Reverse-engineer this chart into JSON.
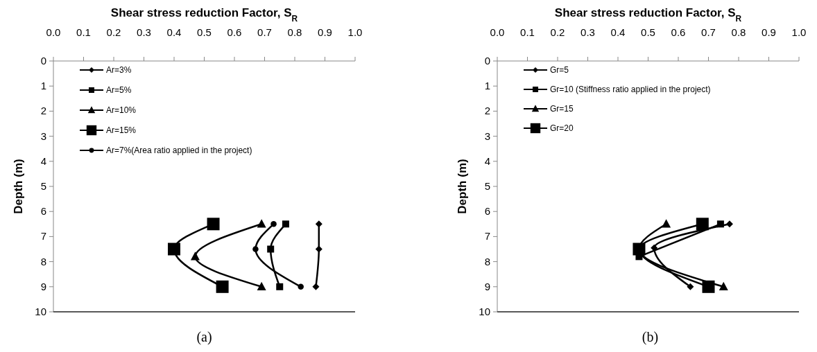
{
  "chart_data": [
    {
      "type": "line",
      "xlabel": "Shear stress reduction Factor, S$_{R}$",
      "ylabel": "Depth (m)",
      "annotations": [
        "(a)"
      ],
      "legend": "top left",
      "grid": false,
      "xlim": [
        0,
        1
      ],
      "xticks": [
        {
          "value": 0,
          "label": "0.0"
        },
        {
          "value": 0.1,
          "label": "0.1"
        },
        {
          "value": 0.2,
          "label": "0.2"
        },
        {
          "value": 0.3,
          "label": "0.3"
        },
        {
          "value": 0.4,
          "label": "0.4"
        },
        {
          "value": 0.5,
          "label": "0.5"
        },
        {
          "value": 0.6,
          "label": "0.6"
        },
        {
          "value": 0.7,
          "label": "0.7"
        },
        {
          "value": 0.8,
          "label": "0.8"
        },
        {
          "value": 0.9,
          "label": "0.9"
        },
        {
          "value": 1,
          "label": "1.0"
        }
      ],
      "ylim": [
        10,
        0
      ],
      "yticks": [
        0,
        1,
        2,
        3,
        4,
        5,
        6,
        7,
        8,
        9,
        10
      ],
      "series": [
        {
          "name": "Ar=3%",
          "color": "#000000",
          "marker": "diamond",
          "x": [
            0.88,
            0.88,
            0.87
          ],
          "values": [
            6.5,
            7.5,
            9
          ]
        },
        {
          "name": "Ar=5%",
          "color": "#000000",
          "marker": "square",
          "x": [
            0.77,
            0.72,
            0.75
          ],
          "values": [
            6.5,
            7.5,
            9
          ]
        },
        {
          "name": "Ar=10%",
          "color": "#000000",
          "marker": "triangle",
          "x": [
            0.69,
            0.47,
            0.69
          ],
          "values": [
            6.5,
            7.8,
            9
          ]
        },
        {
          "name": "Ar=15%",
          "color": "#000000",
          "marker": "square",
          "x": [
            0.53,
            0.4,
            0.56
          ],
          "values": [
            6.5,
            7.5,
            9
          ]
        },
        {
          "name": "Ar=7%(Area ratio applied in the project)",
          "color": "#000000",
          "marker": "circle",
          "x": [
            0.73,
            0.67,
            0.82
          ],
          "values": [
            6.5,
            7.5,
            9
          ]
        }
      ]
    },
    {
      "type": "line",
      "xlabel": "Shear stress reduction Factor, S$_{R}$",
      "ylabel": "Depth (m)",
      "annotations": [
        "(b)"
      ],
      "legend": "top left",
      "grid": false,
      "xlim": [
        0,
        1
      ],
      "xticks": [
        {
          "value": 0,
          "label": "0.0"
        },
        {
          "value": 0.1,
          "label": "0.1"
        },
        {
          "value": 0.2,
          "label": "0.2"
        },
        {
          "value": 0.3,
          "label": "0.3"
        },
        {
          "value": 0.4,
          "label": "0.4"
        },
        {
          "value": 0.5,
          "label": "0.5"
        },
        {
          "value": 0.6,
          "label": "0.6"
        },
        {
          "value": 0.7,
          "label": "0.7"
        },
        {
          "value": 0.8,
          "label": "0.8"
        },
        {
          "value": 0.9,
          "label": "0.9"
        },
        {
          "value": 1,
          "label": "1.0"
        }
      ],
      "ylim": [
        10,
        0
      ],
      "yticks": [
        0,
        1,
        2,
        3,
        4,
        5,
        6,
        7,
        8,
        9,
        10
      ],
      "series": [
        {
          "name": "Gr=5",
          "color": "#000000",
          "marker": "diamond",
          "x": [
            0.77,
            0.52,
            0.64
          ],
          "values": [
            6.5,
            7.45,
            9
          ]
        },
        {
          "name": "Gr=10 (Stiffness ratio applied in the project)",
          "color": "#000000",
          "marker": "square",
          "x": [
            0.74,
            0.47,
            null
          ],
          "values": [
            6.5,
            7.8,
            null
          ]
        },
        {
          "name": "Gr=15",
          "color": "#000000",
          "marker": "triangle",
          "x": [
            0.56,
            0.47,
            0.75
          ],
          "values": [
            6.5,
            7.5,
            9
          ]
        },
        {
          "name": "Gr=20",
          "color": "#000000",
          "marker": "square",
          "x": [
            0.68,
            0.47,
            0.7
          ],
          "values": [
            6.5,
            7.5,
            9
          ]
        }
      ]
    }
  ]
}
